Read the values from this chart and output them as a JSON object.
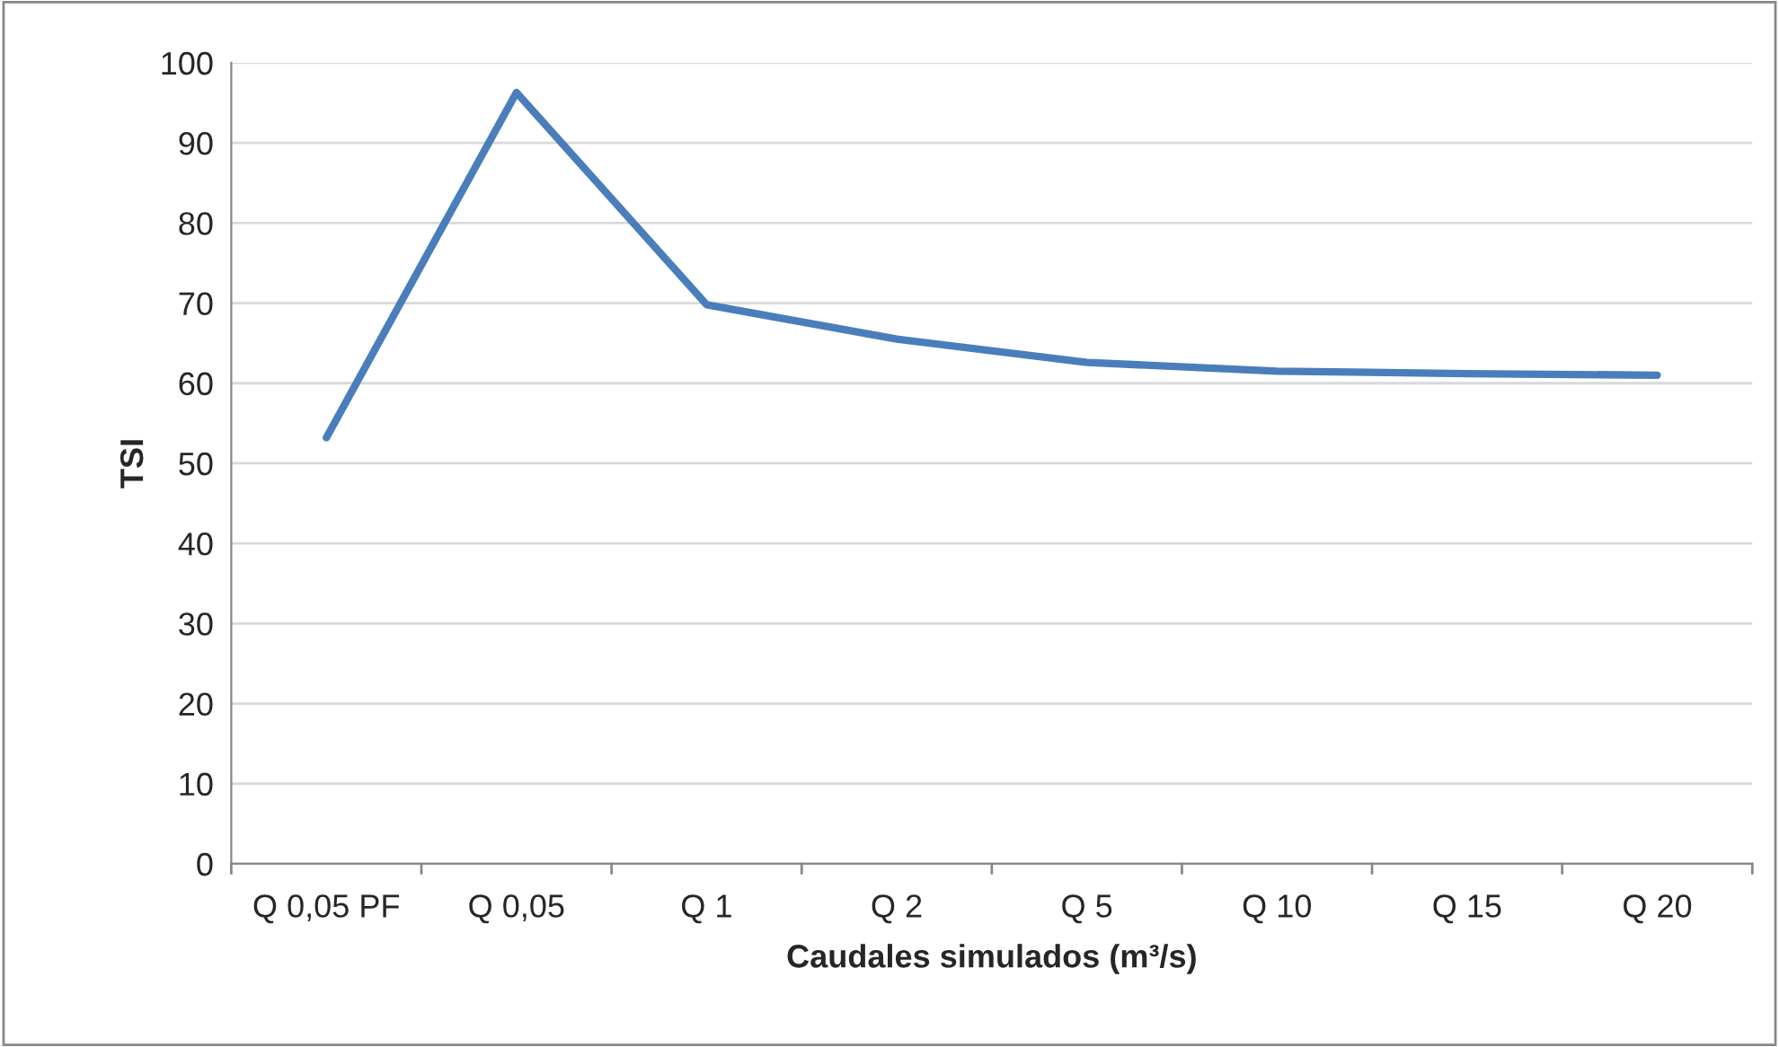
{
  "chart_data": {
    "type": "line",
    "xlabel": "Caudales simulados (m³/s)",
    "ylabel": "TSI",
    "categories": [
      "Q 0,05 PF",
      "Q 0,05",
      "Q 1",
      "Q 2",
      "Q 5",
      "Q 10",
      "Q 15",
      "Q 20"
    ],
    "series": [
      {
        "color": "#4a7ebb",
        "values": [
          53.2,
          96.3,
          69.8,
          65.5,
          62.6,
          61.5,
          61.2,
          61.0
        ]
      }
    ],
    "ylim": [
      0,
      100
    ],
    "yticks": [
      0,
      10,
      20,
      30,
      40,
      50,
      60,
      70,
      80,
      90,
      100
    ],
    "grid": "y",
    "marker": "none",
    "line_style": "solid"
  }
}
